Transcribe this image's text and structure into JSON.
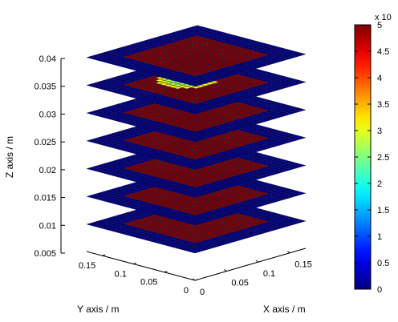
{
  "chart_data": {
    "type": "surface3d",
    "title": "",
    "xlabel": "X axis / m",
    "ylabel": "Y axis / m",
    "zlabel": "Z axis / m",
    "x_range": [
      0,
      0.175
    ],
    "y_range": [
      0,
      0.175
    ],
    "z_range": [
      0.005,
      0.04
    ],
    "x_ticks": [
      "0",
      "0.05",
      "0.1",
      "0.15"
    ],
    "x_tick_values": [
      0,
      0.05,
      0.1,
      0.15
    ],
    "y_ticks": [
      "0",
      "0.05",
      "0.1",
      "0.15"
    ],
    "y_tick_values": [
      0,
      0.05,
      0.1,
      0.15
    ],
    "z_ticks": [
      "0.005",
      "0.01",
      "0.015",
      "0.02",
      "0.025",
      "0.03",
      "0.035",
      "0.04"
    ],
    "z_tick_values": [
      0.005,
      0.01,
      0.015,
      0.02,
      0.025,
      0.03,
      0.035,
      0.04
    ],
    "layers_z": [
      0.005,
      0.01,
      0.015,
      0.02,
      0.025,
      0.03,
      0.035
    ],
    "grid_cells": 24,
    "outer_value": 0,
    "inner_value": 5,
    "inner_cell_range": [
      4,
      20
    ],
    "hotspot": {
      "layer_z": 0.03,
      "value": 2
    },
    "colorbar": {
      "exponent_label": "x 10",
      "ticks": [
        "0",
        "0.5",
        "1",
        "1.5",
        "2",
        "2.5",
        "3",
        "3.5",
        "4",
        "4.5",
        "5"
      ],
      "tick_values": [
        0,
        0.5,
        1,
        1.5,
        2,
        2.5,
        3,
        3.5,
        4,
        4.5,
        5
      ],
      "min": 0,
      "max": 5,
      "colormap": "jet"
    }
  }
}
